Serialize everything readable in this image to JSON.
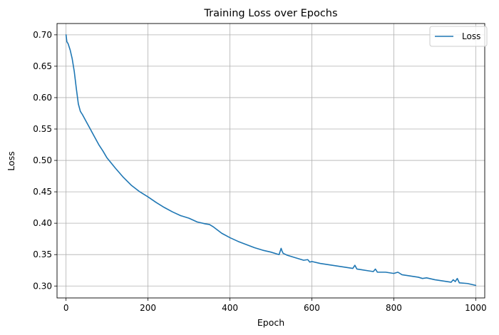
{
  "chart_data": {
    "type": "line",
    "title": "Training Loss over Epochs",
    "xlabel": "Epoch",
    "ylabel": "Loss",
    "xlim": [
      -22,
      1022
    ],
    "ylim": [
      0.281,
      0.718
    ],
    "xticks": [
      0,
      200,
      400,
      600,
      800,
      1000
    ],
    "yticks": [
      0.3,
      0.35,
      0.4,
      0.45,
      0.5,
      0.55,
      0.6,
      0.65,
      0.7
    ],
    "xtick_labels": [
      "0",
      "200",
      "400",
      "600",
      "800",
      "1000"
    ],
    "ytick_labels": [
      "0.30",
      "0.35",
      "0.40",
      "0.45",
      "0.50",
      "0.55",
      "0.60",
      "0.65",
      "0.70"
    ],
    "grid": true,
    "legend_position": "top-right",
    "series": [
      {
        "name": "Loss",
        "color": "#1f77b4",
        "x": [
          0,
          2,
          5,
          10,
          15,
          20,
          25,
          30,
          35,
          40,
          50,
          60,
          70,
          80,
          90,
          100,
          120,
          140,
          160,
          180,
          200,
          220,
          240,
          260,
          280,
          300,
          320,
          340,
          350,
          360,
          380,
          400,
          420,
          440,
          460,
          480,
          500,
          520,
          525,
          527,
          530,
          540,
          560,
          580,
          590,
          595,
          600,
          620,
          640,
          660,
          680,
          700,
          705,
          710,
          720,
          740,
          750,
          755,
          760,
          780,
          800,
          810,
          820,
          840,
          860,
          870,
          880,
          900,
          920,
          940,
          945,
          950,
          955,
          960,
          980,
          1000
        ],
        "y": [
          0.7,
          0.689,
          0.686,
          0.676,
          0.662,
          0.642,
          0.615,
          0.59,
          0.578,
          0.573,
          0.561,
          0.549,
          0.537,
          0.525,
          0.515,
          0.504,
          0.488,
          0.473,
          0.46,
          0.45,
          0.442,
          0.433,
          0.425,
          0.418,
          0.412,
          0.408,
          0.402,
          0.399,
          0.398,
          0.394,
          0.384,
          0.377,
          0.371,
          0.366,
          0.361,
          0.357,
          0.354,
          0.35,
          0.36,
          0.356,
          0.352,
          0.349,
          0.345,
          0.341,
          0.342,
          0.338,
          0.339,
          0.336,
          0.334,
          0.332,
          0.33,
          0.328,
          0.333,
          0.327,
          0.326,
          0.324,
          0.323,
          0.327,
          0.322,
          0.322,
          0.32,
          0.322,
          0.318,
          0.316,
          0.314,
          0.312,
          0.313,
          0.31,
          0.308,
          0.306,
          0.31,
          0.307,
          0.312,
          0.305,
          0.304,
          0.301
        ]
      }
    ]
  }
}
